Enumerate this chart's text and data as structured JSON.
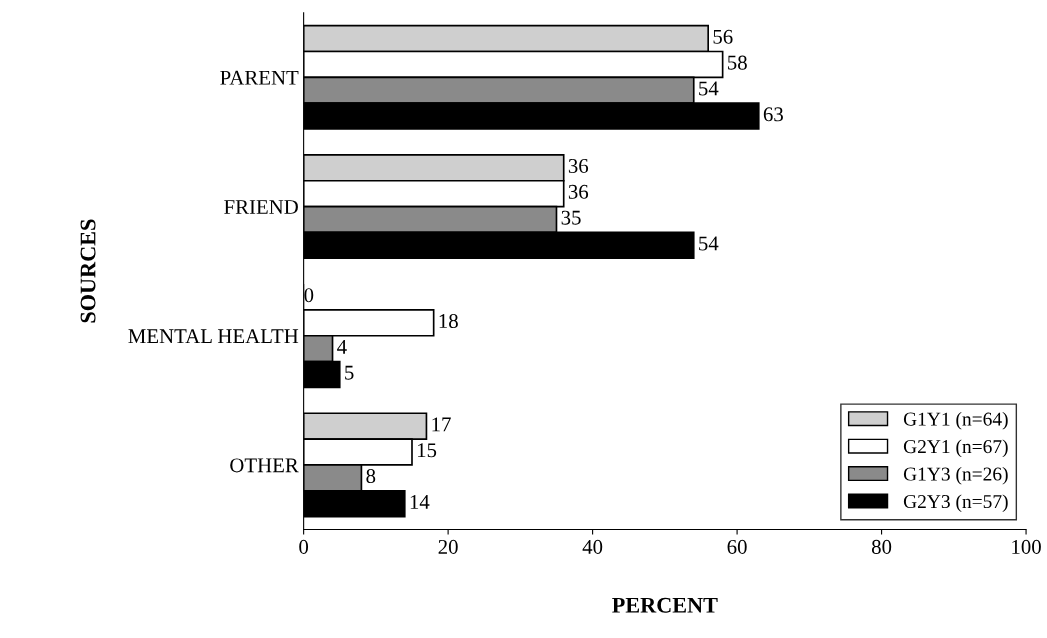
{
  "chart_data": {
    "type": "bar",
    "orientation": "horizontal",
    "xlabel": "PERCENT",
    "ylabel": "SOURCES",
    "categories": [
      "PARENT",
      "FRIEND",
      "MENTAL HEALTH",
      "OTHER"
    ],
    "series": [
      {
        "name": "G1Y1 (n=64)",
        "color": "#cfcfcf",
        "values": [
          56,
          36,
          0,
          17
        ]
      },
      {
        "name": "G2Y1 (n=67)",
        "color": "#ffffff",
        "values": [
          58,
          36,
          18,
          15
        ]
      },
      {
        "name": "G1Y3 (n=26)",
        "color": "#8a8a8a",
        "values": [
          54,
          35,
          4,
          8
        ]
      },
      {
        "name": "G2Y3 (n=57)",
        "color": "#000000",
        "values": [
          63,
          54,
          5,
          14
        ]
      }
    ],
    "xlim": [
      0,
      100
    ],
    "xticks": [
      0,
      20,
      40,
      60,
      80,
      100
    ],
    "data_labels": true,
    "grid": false,
    "legend": "bottom right"
  }
}
